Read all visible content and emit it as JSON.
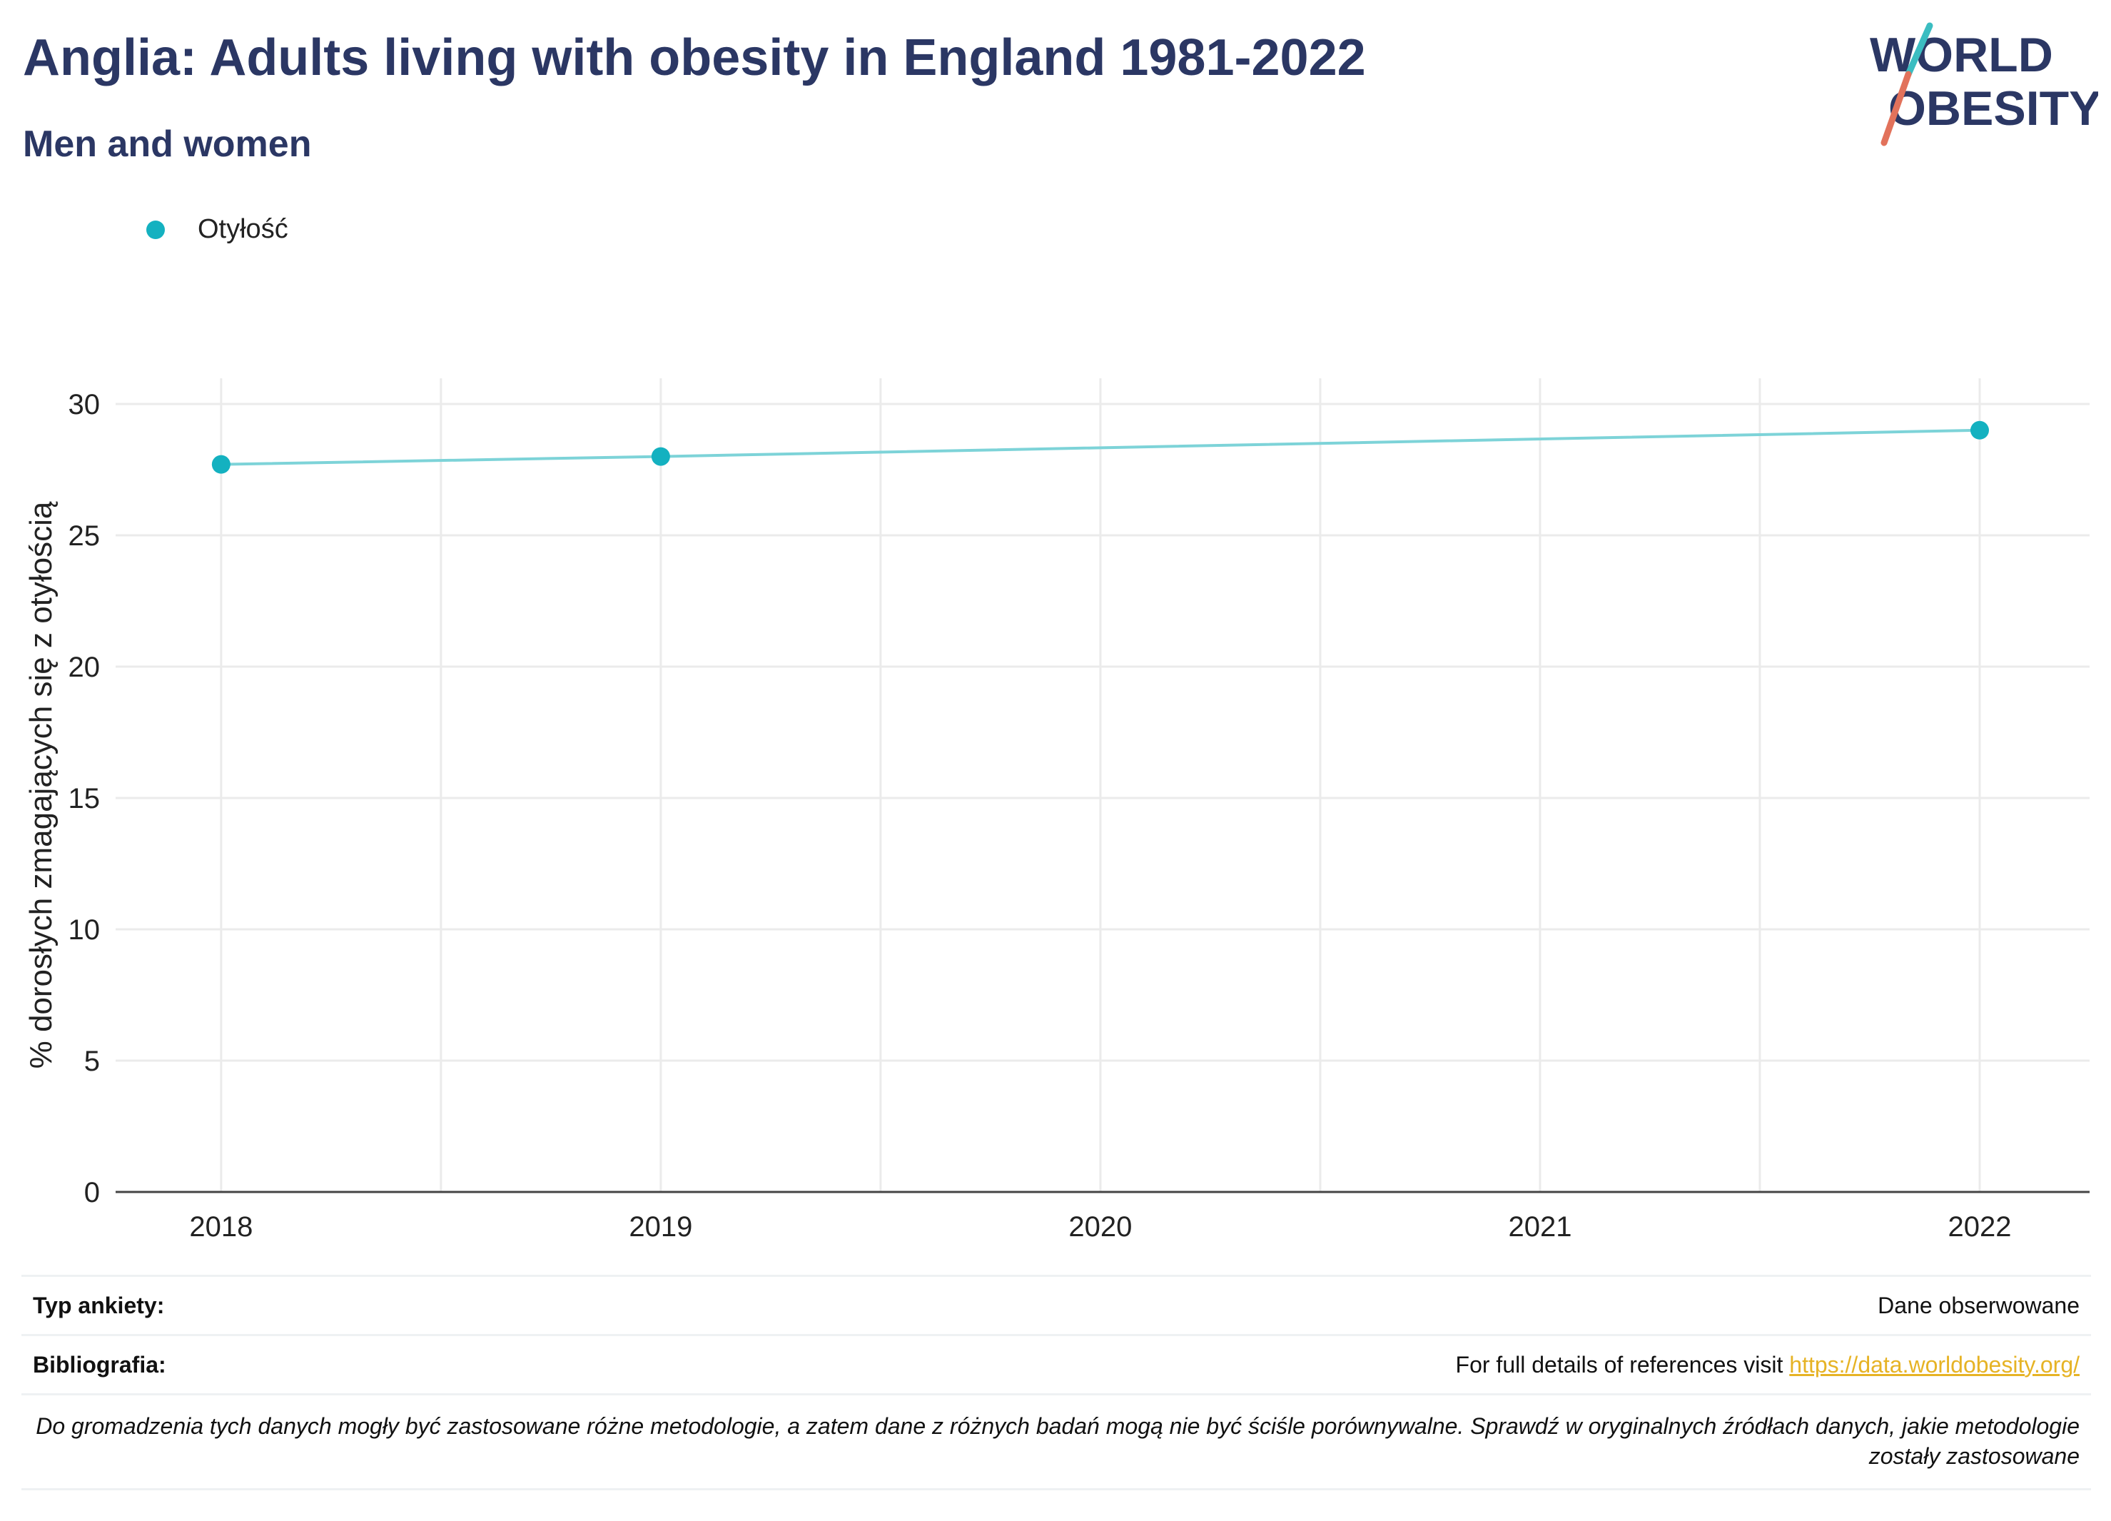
{
  "header": {
    "title": "Anglia: Adults living with obesity in England 1981-2022",
    "subtitle": "Men and women"
  },
  "logo": {
    "line1": "WORLD",
    "line2": "OBESITY"
  },
  "legend": [
    {
      "label": "Otyłość",
      "color": "#14b1c0"
    }
  ],
  "colors": {
    "accent": "#14b1c0",
    "line": "#7dd3d8",
    "title": "#2b3764",
    "link": "#e6b325"
  },
  "chart_data": {
    "type": "line",
    "title": "Anglia: Adults living with obesity in England 1981-2022",
    "subtitle": "Men and women",
    "xlabel": "",
    "ylabel": "% dorosłych zmagających się z otyłością",
    "x": [
      2018,
      2019,
      2022
    ],
    "series": [
      {
        "name": "Otyłość",
        "values": [
          27.7,
          28.0,
          29.0
        ]
      }
    ],
    "xlim": [
      2017.76,
      2022.25
    ],
    "ylim": [
      0,
      30
    ],
    "xticks": [
      "2018",
      "2019",
      "2020",
      "2021",
      "2022"
    ],
    "yticks": [
      "0",
      "5",
      "10",
      "15",
      "20",
      "25",
      "30"
    ],
    "grid": true,
    "legend_position": "top-left"
  },
  "footer": {
    "survey_label": "Typ ankiety:",
    "survey_value": "Dane obserwowane",
    "biblio_label": "Bibliografia:",
    "biblio_text": "For full details of references visit",
    "biblio_link": "https://data.worldobesity.org/",
    "note": "Do gromadzenia tych danych mogły być zastosowane różne metodologie, a zatem dane z różnych badań mogą nie być ściśle porównywalne. Sprawdź w oryginalnych źródłach danych, jakie metodologie zostały zastosowane"
  }
}
